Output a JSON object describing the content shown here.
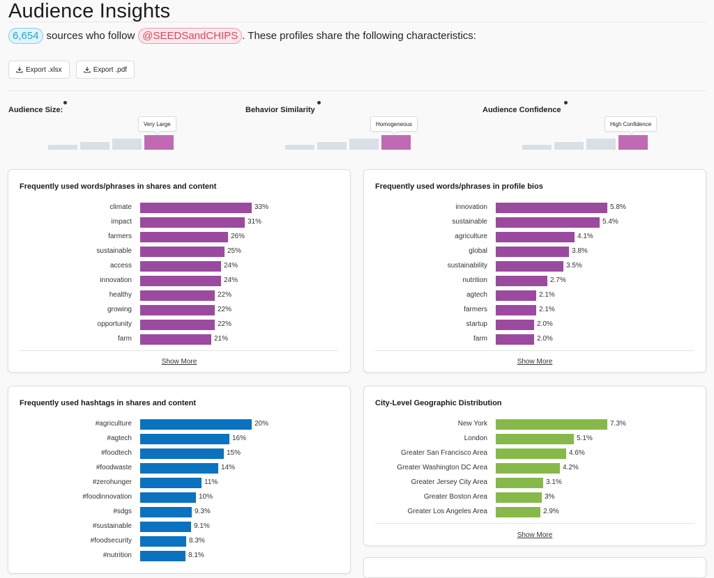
{
  "page": {
    "title": "Audience Insights",
    "source_count": "6,654",
    "subtitle_mid": "sources who follow",
    "handle": "@SEEDSandCHIPS",
    "subtitle_end": ". These profiles share the following characteristics:"
  },
  "exports": [
    {
      "label": "Export .xlsx"
    },
    {
      "label": "Export .pdf"
    }
  ],
  "metrics": [
    {
      "label": "Audience Size:",
      "value": "Very Large",
      "level": 4,
      "of": 4
    },
    {
      "label": "Behavior Similarity",
      "value": "Homogeneous",
      "level": 4,
      "of": 4
    },
    {
      "label": "Audience Confidence",
      "value": "High Confidence",
      "level": 4,
      "of": 4
    }
  ],
  "colors": {
    "purple": "#9b4aa0",
    "blue": "#0a72bf",
    "green": "#87b84a",
    "metric_active": "#c06ab4",
    "metric_inactive": "#d9e0e5"
  },
  "cards": {
    "words_shares": {
      "title": "Frequently used words/phrases in shares and content",
      "show_more": "Show More",
      "items": [
        {
          "label": "climate",
          "value": 33,
          "display": "33%"
        },
        {
          "label": "impact",
          "value": 31,
          "display": "31%"
        },
        {
          "label": "farmers",
          "value": 26,
          "display": "26%"
        },
        {
          "label": "sustainable",
          "value": 25,
          "display": "25%"
        },
        {
          "label": "access",
          "value": 24,
          "display": "24%"
        },
        {
          "label": "innovation",
          "value": 24,
          "display": "24%"
        },
        {
          "label": "healthy",
          "value": 22,
          "display": "22%"
        },
        {
          "label": "growing",
          "value": 22,
          "display": "22%"
        },
        {
          "label": "opportunity",
          "value": 22,
          "display": "22%"
        },
        {
          "label": "farm",
          "value": 21,
          "display": "21%"
        }
      ]
    },
    "words_bios": {
      "title": "Frequently used words/phrases in profile bios",
      "show_more": "Show More",
      "items": [
        {
          "label": "innovation",
          "value": 5.8,
          "display": "5.8%"
        },
        {
          "label": "sustainable",
          "value": 5.4,
          "display": "5.4%"
        },
        {
          "label": "agriculture",
          "value": 4.1,
          "display": "4.1%"
        },
        {
          "label": "global",
          "value": 3.8,
          "display": "3.8%"
        },
        {
          "label": "sustainability",
          "value": 3.5,
          "display": "3.5%"
        },
        {
          "label": "nutrition",
          "value": 2.7,
          "display": "2.7%"
        },
        {
          "label": "agtech",
          "value": 2.1,
          "display": "2.1%"
        },
        {
          "label": "farmers",
          "value": 2.1,
          "display": "2.1%"
        },
        {
          "label": "startup",
          "value": 2.0,
          "display": "2.0%"
        },
        {
          "label": "farm",
          "value": 2.0,
          "display": "2.0%"
        }
      ]
    },
    "hashtags": {
      "title": "Frequently used hashtags in shares and content",
      "items": [
        {
          "label": "#agriculture",
          "value": 20,
          "display": "20%"
        },
        {
          "label": "#agtech",
          "value": 16,
          "display": "16%"
        },
        {
          "label": "#foodtech",
          "value": 15,
          "display": "15%"
        },
        {
          "label": "#foodwaste",
          "value": 14,
          "display": "14%"
        },
        {
          "label": "#zerohunger",
          "value": 11,
          "display": "11%"
        },
        {
          "label": "#foodinnovation",
          "value": 10,
          "display": "10%"
        },
        {
          "label": "#sdgs",
          "value": 9.3,
          "display": "9.3%"
        },
        {
          "label": "#sustainable",
          "value": 9.1,
          "display": "9.1%"
        },
        {
          "label": "#foodsecurity",
          "value": 8.3,
          "display": "8.3%"
        },
        {
          "label": "#nutrition",
          "value": 8.1,
          "display": "8.1%"
        }
      ]
    },
    "cities": {
      "title": "City-Level Geographic Distribution",
      "show_more": "Show More",
      "items": [
        {
          "label": "New York",
          "value": 7.3,
          "display": "7.3%"
        },
        {
          "label": "London",
          "value": 5.1,
          "display": "5.1%"
        },
        {
          "label": "Greater San Francisco Area",
          "value": 4.6,
          "display": "4.6%"
        },
        {
          "label": "Greater Washington DC Area",
          "value": 4.2,
          "display": "4.2%"
        },
        {
          "label": "Greater Jersey City Area",
          "value": 3.1,
          "display": "3.1%"
        },
        {
          "label": "Greater Boston Area",
          "value": 3,
          "display": "3%"
        },
        {
          "label": "Greater Los Angeles Area",
          "value": 2.9,
          "display": "2.9%"
        }
      ]
    }
  }
}
